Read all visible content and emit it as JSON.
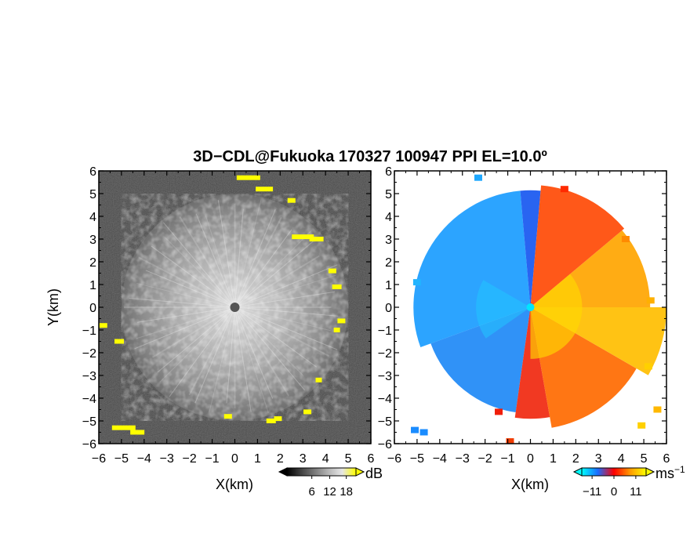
{
  "chart_data": {
    "title": "3D−CDL@Fukuoka 170327 100947 PPI EL=10.0º",
    "panels": [
      {
        "type": "heatmap",
        "field": "signal-to-noise",
        "xlabel": "X(km)",
        "ylabel": "Y(km)",
        "xlim": [
          -6,
          6
        ],
        "ylim": [
          -6,
          6
        ],
        "xticks": [
          "−6",
          "−5",
          "−4",
          "−3",
          "−2",
          "−1",
          "0",
          "1",
          "2",
          "3",
          "4",
          "5",
          "6"
        ],
        "yticks": [
          "6",
          "5",
          "4",
          "3",
          "2",
          "1",
          "0",
          "−1",
          "−2",
          "−3",
          "−4",
          "−5",
          "−6"
        ],
        "colorbar": {
          "unit": "dB",
          "ticks": [
            "6",
            "12",
            "18"
          ],
          "colors": [
            "#000000",
            "#404040",
            "#7a7a7a",
            "#b5b5b5",
            "#e6e6e6",
            "#ffff00"
          ]
        },
        "range_radius_km": 5
      },
      {
        "type": "heatmap",
        "field": "doppler-velocity",
        "xlabel": "X(km)",
        "ylabel": "",
        "xlim": [
          -6,
          6
        ],
        "ylim": [
          -6,
          6
        ],
        "xticks": [
          "−6",
          "−5",
          "−4",
          "−3",
          "−2",
          "−1",
          "0",
          "1",
          "2",
          "3",
          "4",
          "5",
          "6"
        ],
        "yticks": [
          "6",
          "5",
          "4",
          "3",
          "2",
          "1",
          "0",
          "−1",
          "−2",
          "−3",
          "−4",
          "−5",
          "−6"
        ],
        "colorbar": {
          "unit": "ms",
          "unit_exp": "−1",
          "ticks": [
            "−11",
            "0",
            "11"
          ],
          "colors": [
            "#00ffff",
            "#1a6cff",
            "#ff0000",
            "#ff9900",
            "#ffff00"
          ]
        },
        "range_radius_km": 6
      }
    ]
  }
}
